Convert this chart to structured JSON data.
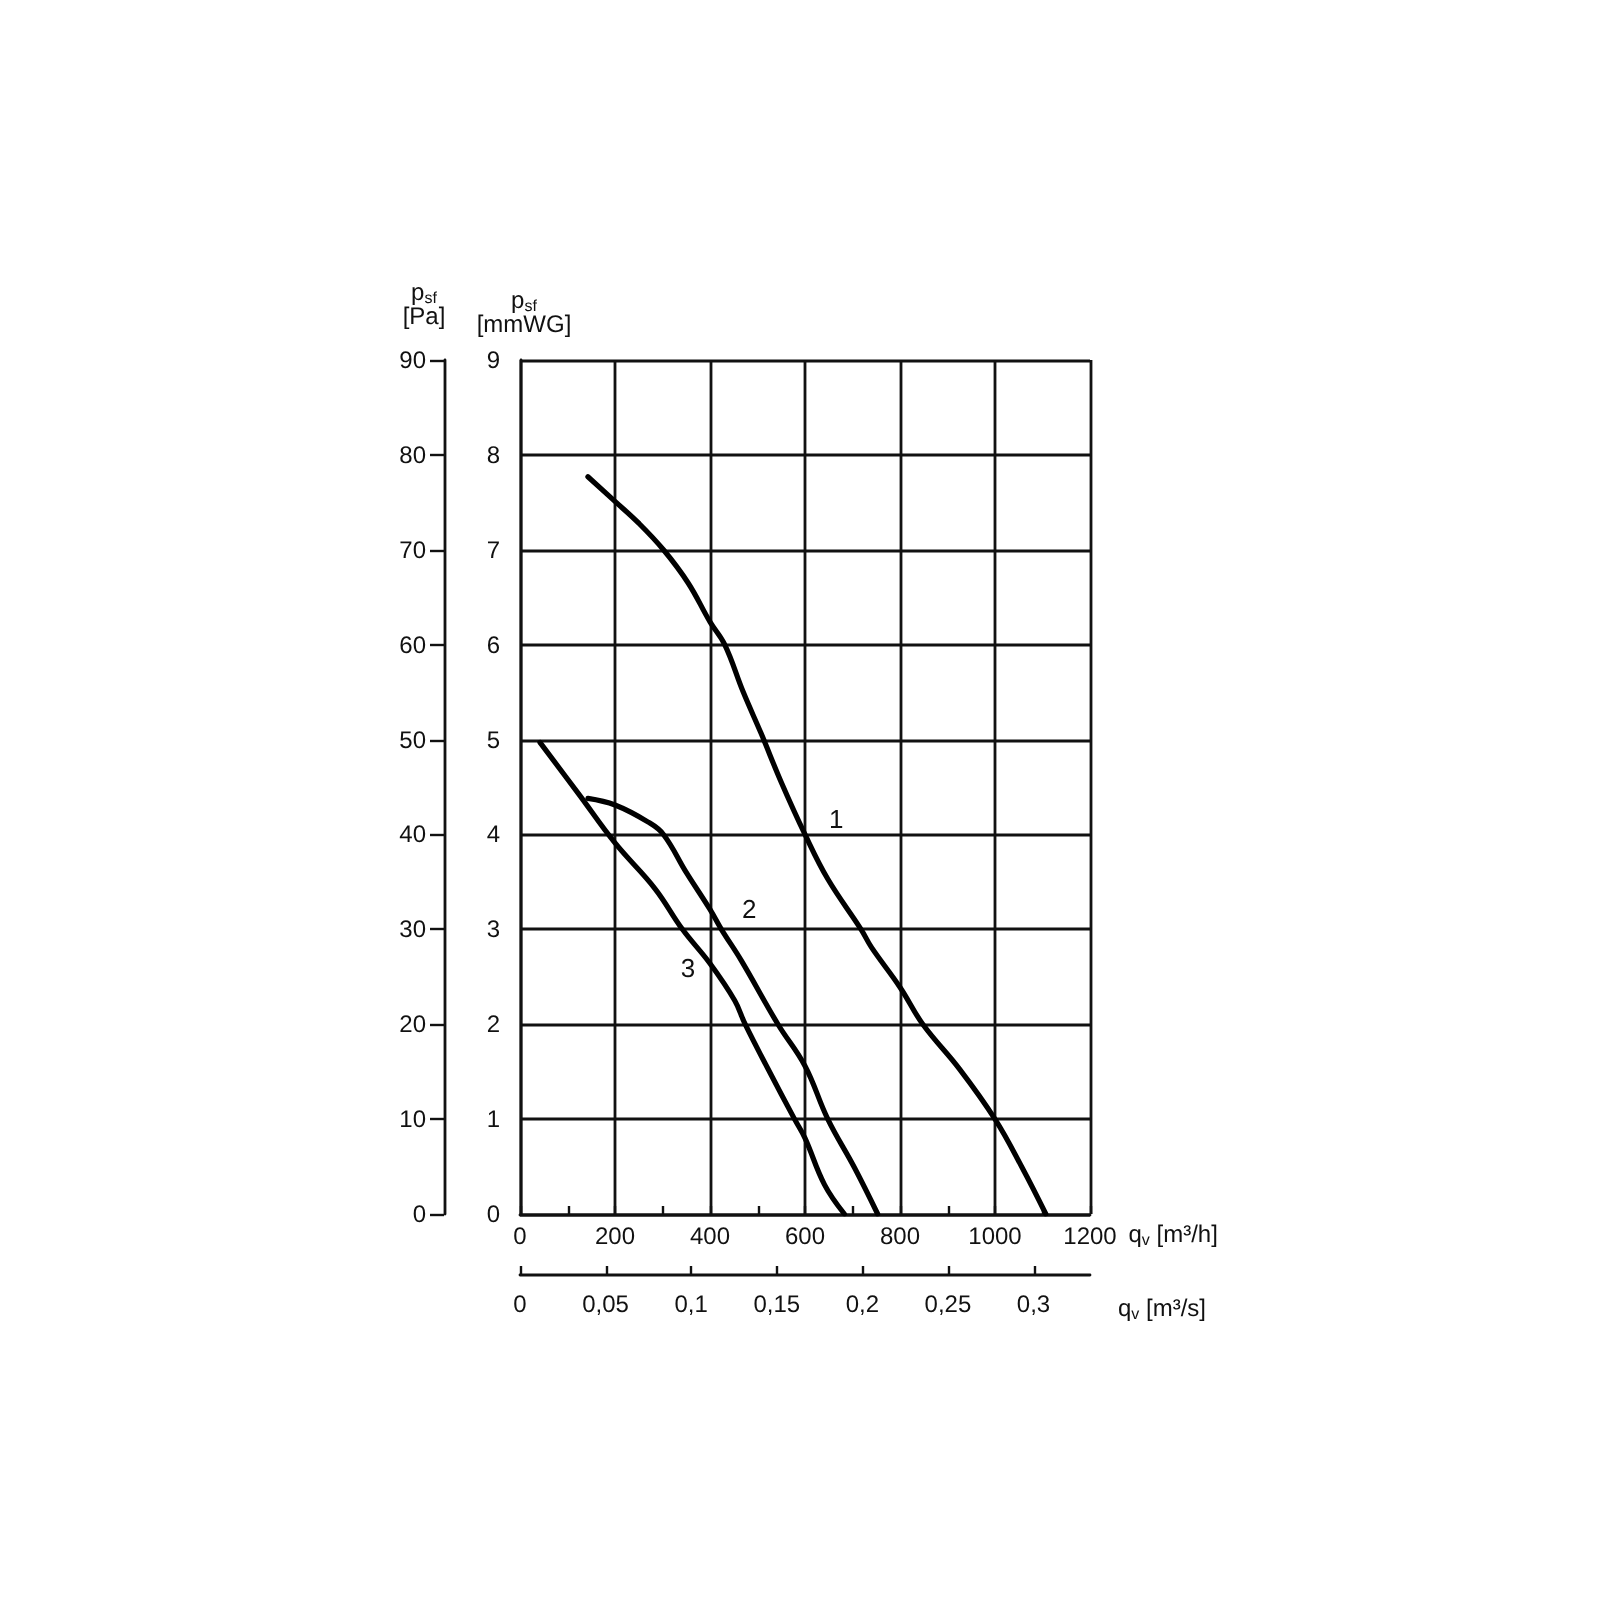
{
  "chart_data": {
    "type": "line",
    "xlabel": "q$_{v}$ [m³/h]",
    "x2label": "q$_{v}$ [m³/s]",
    "ylabel": "p$_{sf}$ [mmWG]",
    "y2label": "p$_{sf}$ [Pa]",
    "xlim": [
      0,
      1200
    ],
    "xticks": [
      0,
      {
        "value": 100,
        "label": null
      },
      200,
      {
        "value": 300,
        "label": null
      },
      400,
      {
        "value": 500,
        "label": null
      },
      600,
      {
        "value": 700,
        "label": null
      },
      800,
      {
        "value": 900,
        "label": null
      },
      1000,
      {
        "value": 1100,
        "label": null
      },
      1200
    ],
    "x2lim": [
      0,
      0.333
    ],
    "x2ticks": [
      0,
      {
        "value": 0.05,
        "label": "0,05"
      },
      {
        "value": 0.1,
        "label": "0,1"
      },
      {
        "value": 0.15,
        "label": "0,15"
      },
      {
        "value": 0.2,
        "label": "0,2"
      },
      {
        "value": 0.25,
        "label": "0,25"
      },
      {
        "value": 0.3,
        "label": "0,3"
      }
    ],
    "ylim": [
      0,
      9
    ],
    "yticks": [
      0,
      1,
      2,
      3,
      4,
      5,
      6,
      7,
      8,
      9
    ],
    "y2lim": [
      0,
      90
    ],
    "y2ticks": [
      0,
      10,
      20,
      30,
      40,
      50,
      60,
      70,
      80,
      90
    ],
    "series": [
      {
        "color": "#000000",
        "x": [
          143,
          200,
          250,
          302,
          354,
          400,
          431,
          470,
          508,
          550,
          600,
          648,
          718,
          740,
          800,
          848,
          925,
          1000,
          1057,
          1107
        ],
        "values": [
          7.77,
          7.51,
          7.28,
          7.0,
          6.65,
          6.24,
          6.0,
          5.5,
          5.06,
          4.55,
          4.0,
          3.53,
          3.0,
          2.81,
          2.39,
          2.0,
          1.53,
          1.0,
          0.49,
          0
        ]
      },
      {
        "color": "#000000",
        "x": [
          143,
          200,
          270,
          302,
          350,
          400,
          424,
          466,
          543,
          600,
          648,
          704,
          753
        ],
        "values": [
          4.38,
          4.31,
          4.13,
          4.0,
          3.6,
          3.21,
          3.0,
          2.67,
          2.0,
          1.56,
          1.0,
          0.49,
          0
        ]
      },
      {
        "color": "#000000",
        "x": [
          42,
          123,
          200,
          284,
          342,
          400,
          452,
          474,
          522,
          578,
          600,
          641,
          683
        ],
        "values": [
          4.97,
          4.43,
          3.91,
          3.43,
          3.0,
          2.64,
          2.25,
          2.0,
          1.53,
          1.0,
          0.8,
          0.31,
          0
        ]
      }
    ],
    "annotations": [
      {
        "text": "1",
        "x": 600,
        "y": 4.0
      },
      {
        "text": "2",
        "x": 417,
        "y": 3.06
      },
      {
        "text": "3",
        "x": 428,
        "y": 2.43
      }
    ],
    "grid": true,
    "marker": "none",
    "line_style": "solid"
  }
}
